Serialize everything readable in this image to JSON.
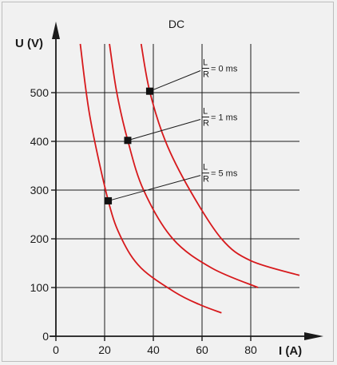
{
  "chart_data": {
    "type": "line",
    "title": "DC",
    "xlabel": "I (A)",
    "ylabel": "U (V)",
    "xlim": [
      0,
      100
    ],
    "ylim": [
      0,
      600
    ],
    "xticks": [
      0,
      20,
      40,
      60,
      80
    ],
    "yticks": [
      0,
      100,
      200,
      300,
      400,
      500
    ],
    "grid": true,
    "colors": {
      "curve": "#d7191c",
      "grid": "#1a1a1a",
      "axis": "#1a1a1a",
      "marker": "#111111"
    },
    "series": [
      {
        "label_top": "L",
        "label_bottom": "R",
        "label_value": "= 0 ms",
        "marker": [
          38.5,
          503
        ],
        "label_at": [
          60,
          550
        ],
        "points": [
          [
            35,
            600
          ],
          [
            38.5,
            503
          ],
          [
            45,
            400
          ],
          [
            55,
            300
          ],
          [
            68,
            200
          ],
          [
            80,
            155
          ],
          [
            100,
            125
          ]
        ]
      },
      {
        "label_top": "L",
        "label_bottom": "R",
        "label_value": "= 1 ms",
        "marker": [
          29.5,
          402
        ],
        "label_at": [
          60,
          450
        ],
        "points": [
          [
            22,
            600
          ],
          [
            25,
            500
          ],
          [
            29.5,
            402
          ],
          [
            36,
            300
          ],
          [
            48,
            200
          ],
          [
            64,
            140
          ],
          [
            83,
            100
          ]
        ]
      },
      {
        "label_top": "L",
        "label_bottom": "R",
        "label_value": "= 5 ms",
        "marker": [
          21.5,
          278
        ],
        "label_at": [
          60,
          335
        ],
        "points": [
          [
            10,
            600
          ],
          [
            14,
            450
          ],
          [
            21.5,
            278
          ],
          [
            27,
            200
          ],
          [
            35,
            140
          ],
          [
            49,
            90
          ],
          [
            59,
            65
          ],
          [
            68,
            48
          ]
        ]
      }
    ]
  }
}
